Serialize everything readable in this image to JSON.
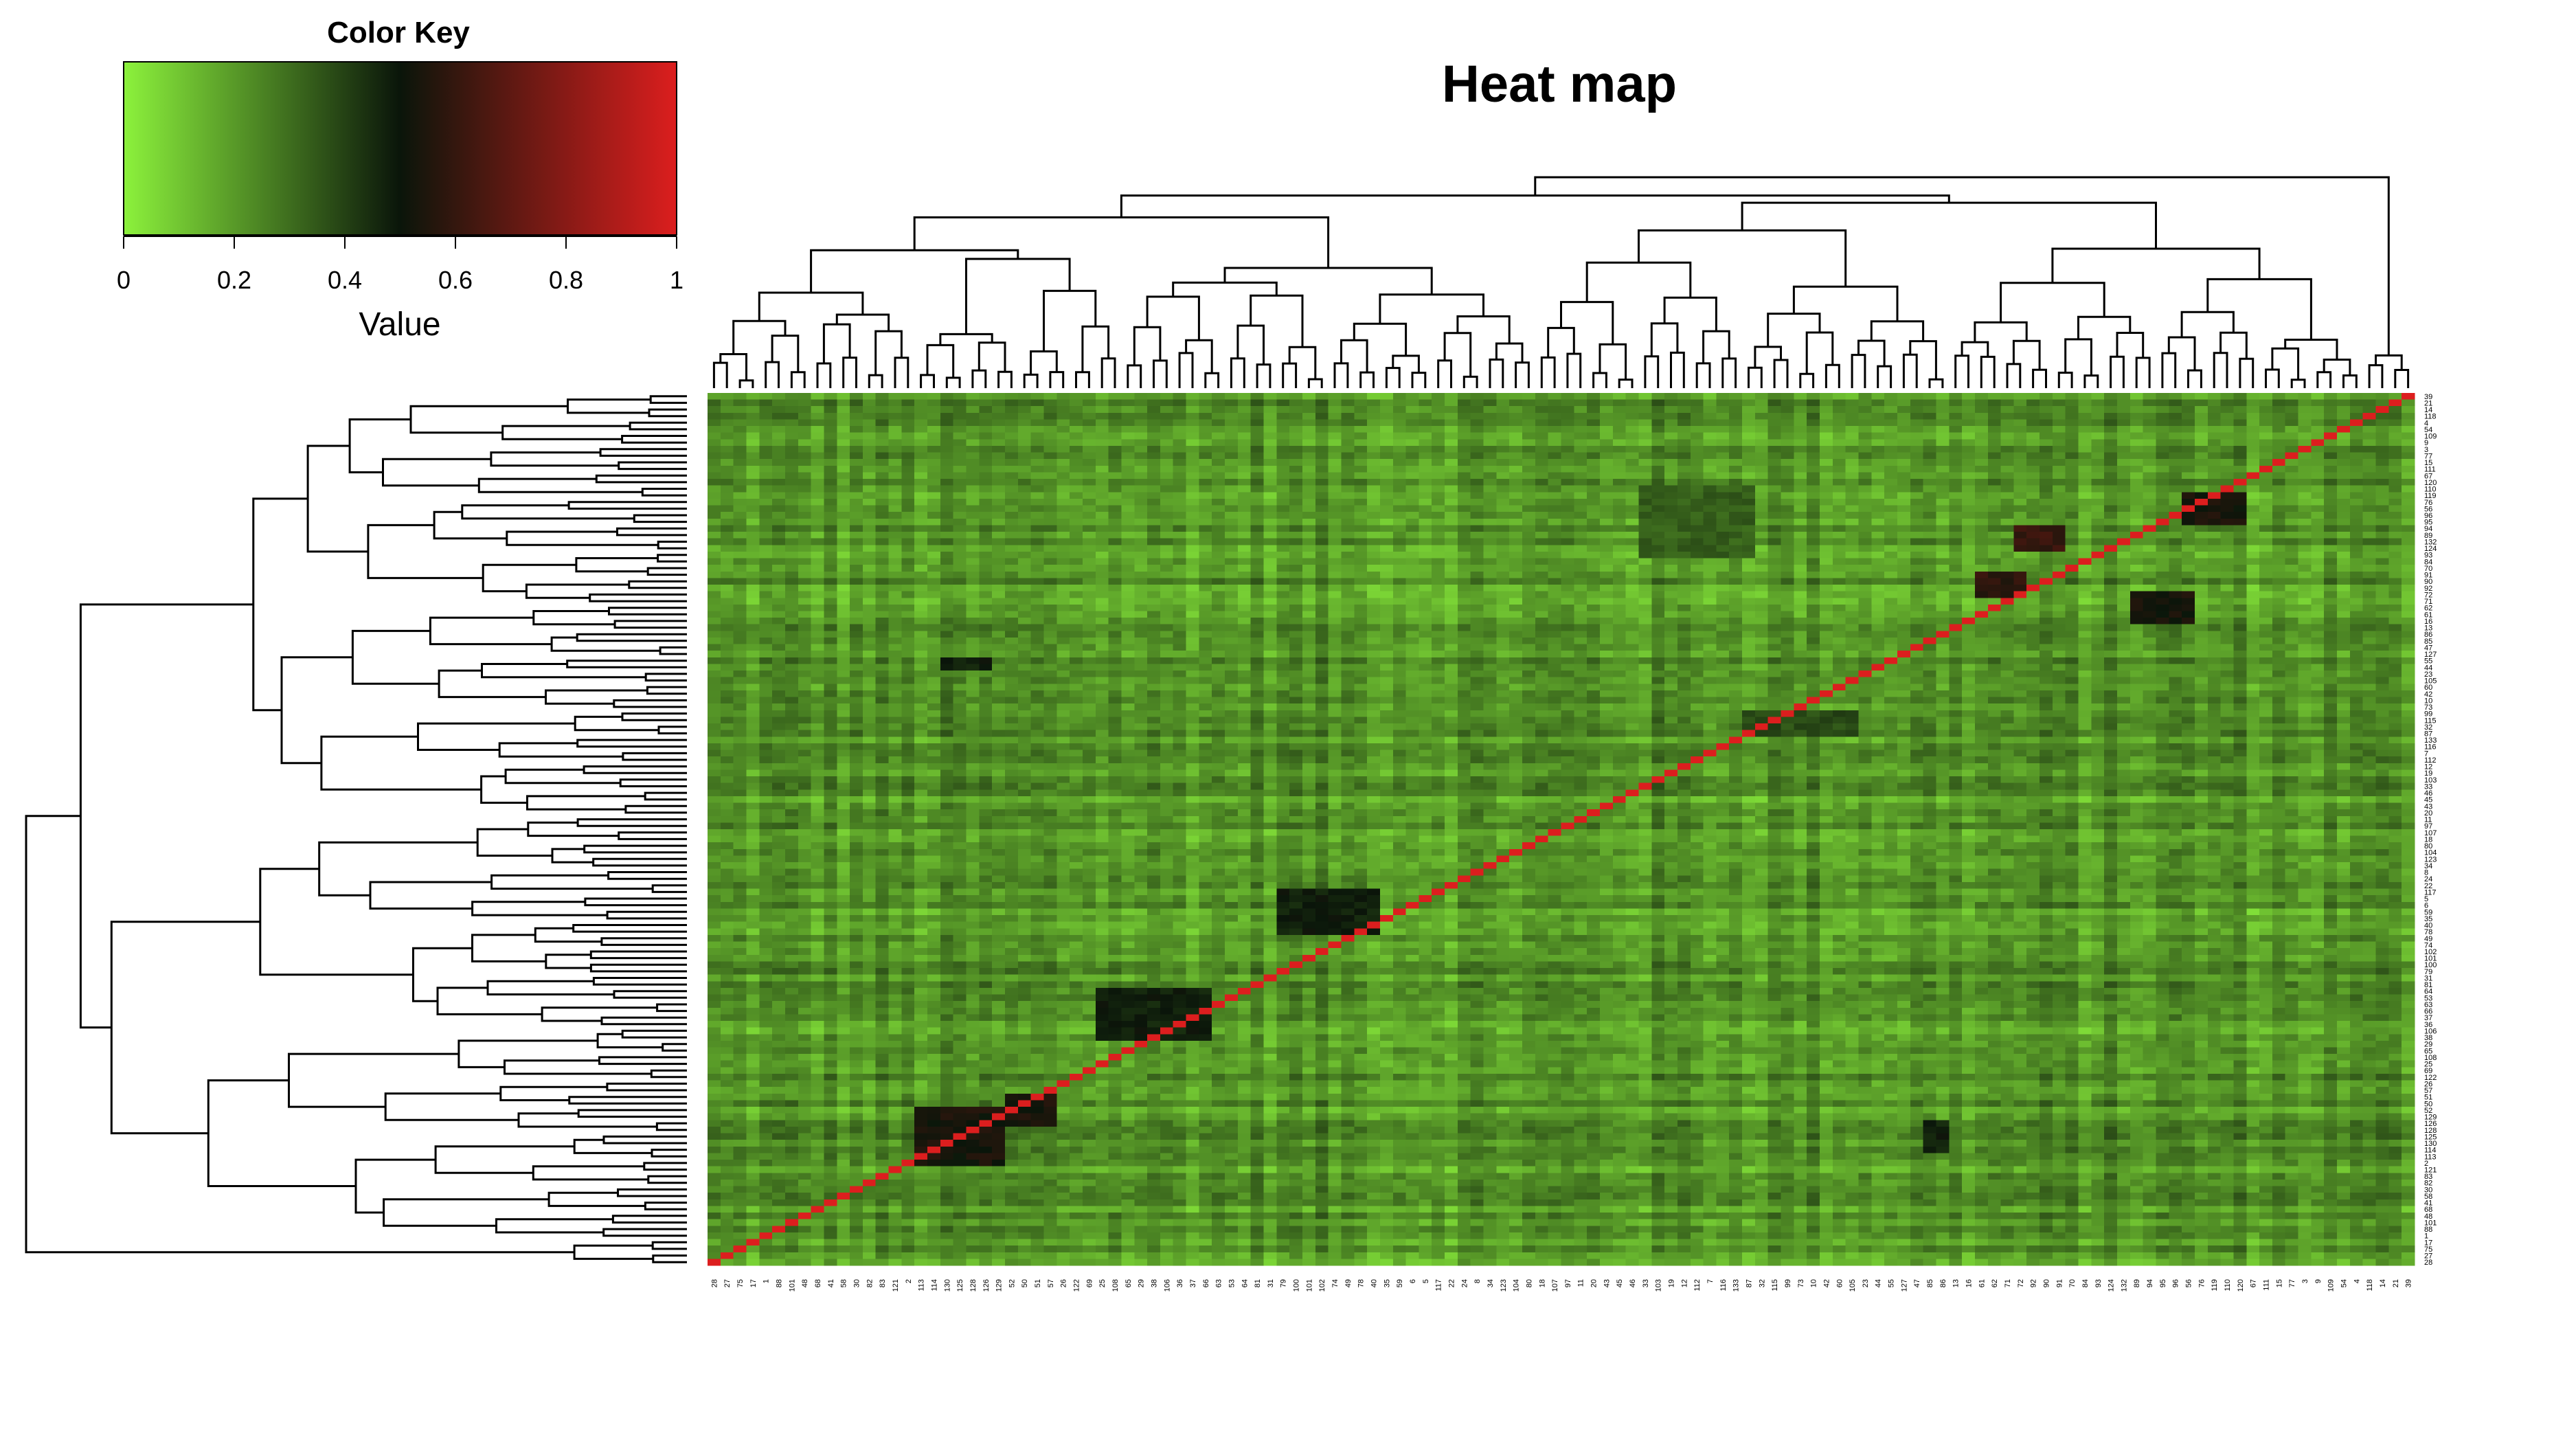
{
  "chart_data": {
    "type": "heatmap",
    "title": "Heat map",
    "color_key": {
      "title": "Color Key",
      "xlabel": "Value",
      "ticks": [
        "0",
        "0.2",
        "0.4",
        "0.6",
        "0.8",
        "1"
      ],
      "range": [
        0,
        1
      ],
      "colors": [
        "#8cf23c",
        "#0a150a",
        "#dc1e1e"
      ]
    },
    "column_labels": [
      "28",
      "27",
      "75",
      "17",
      "1",
      "88",
      "101",
      "48",
      "68",
      "41",
      "58",
      "30",
      "82",
      "83",
      "121",
      "2",
      "113",
      "114",
      "130",
      "125",
      "128",
      "126",
      "129",
      "52",
      "50",
      "51",
      "57",
      "26",
      "122",
      "69",
      "25",
      "108",
      "65",
      "29",
      "38",
      "106",
      "36",
      "37",
      "66",
      "63",
      "53",
      "64",
      "81",
      "31",
      "79",
      "100",
      "101",
      "102",
      "74",
      "49",
      "78",
      "40",
      "35",
      "59",
      "6",
      "5",
      "117",
      "22",
      "24",
      "8",
      "34",
      "123",
      "104",
      "80",
      "18",
      "107",
      "97",
      "11",
      "20",
      "43",
      "45",
      "46",
      "33",
      "103",
      "19",
      "12",
      "112",
      "7",
      "116",
      "133",
      "87",
      "32",
      "115",
      "99",
      "73",
      "10",
      "42",
      "60",
      "105",
      "23",
      "44",
      "55",
      "127",
      "47",
      "85",
      "86",
      "13",
      "16",
      "61",
      "62",
      "71",
      "72",
      "92",
      "90",
      "91",
      "70",
      "84",
      "93",
      "124",
      "132",
      "89",
      "94",
      "95",
      "96",
      "56",
      "76",
      "119",
      "110",
      "120",
      "67",
      "111",
      "15",
      "77",
      "3",
      "9",
      "109",
      "54",
      "4",
      "118",
      "14",
      "21",
      "39"
    ],
    "row_labels": [
      "39",
      "21",
      "14",
      "118",
      "4",
      "54",
      "109",
      "9",
      "3",
      "77",
      "15",
      "111",
      "67",
      "120",
      "110",
      "119",
      "76",
      "56",
      "96",
      "95",
      "94",
      "89",
      "132",
      "124",
      "93",
      "84",
      "70",
      "91",
      "90",
      "92",
      "72",
      "71",
      "62",
      "61",
      "16",
      "13",
      "86",
      "85",
      "47",
      "127",
      "55",
      "44",
      "23",
      "105",
      "60",
      "42",
      "10",
      "73",
      "99",
      "115",
      "32",
      "87",
      "133",
      "116",
      "7",
      "112",
      "12",
      "19",
      "103",
      "33",
      "46",
      "45",
      "43",
      "20",
      "11",
      "97",
      "107",
      "18",
      "80",
      "104",
      "123",
      "34",
      "8",
      "24",
      "22",
      "117",
      "5",
      "6",
      "59",
      "35",
      "40",
      "78",
      "49",
      "74",
      "102",
      "101",
      "100",
      "79",
      "31",
      "81",
      "64",
      "53",
      "63",
      "66",
      "37",
      "36",
      "106",
      "38",
      "29",
      "65",
      "108",
      "25",
      "69",
      "122",
      "26",
      "57",
      "51",
      "50",
      "52",
      "129",
      "126",
      "128",
      "125",
      "130",
      "114",
      "113",
      "2",
      "121",
      "83",
      "82",
      "30",
      "58",
      "41",
      "68",
      "48",
      "101",
      "88",
      "1",
      "17",
      "75",
      "27",
      "28"
    ],
    "blocks": [
      {
        "rows": [
          30,
          34
        ],
        "cols": [
          110,
          114
        ],
        "value": 0.55
      },
      {
        "rows": [
          15,
          19
        ],
        "cols": [
          114,
          118
        ],
        "value": 0.55
      },
      {
        "rows": [
          27,
          30
        ],
        "cols": [
          98,
          101
        ],
        "value": 0.6
      },
      {
        "rows": [
          20,
          23
        ],
        "cols": [
          101,
          104
        ],
        "value": 0.62
      },
      {
        "rows": [
          75,
          81
        ],
        "cols": [
          44,
          51
        ],
        "value": 0.5
      },
      {
        "rows": [
          90,
          97
        ],
        "cols": [
          30,
          38
        ],
        "value": 0.5
      },
      {
        "rows": [
          108,
          116
        ],
        "cols": [
          16,
          22
        ],
        "value": 0.55
      },
      {
        "rows": [
          106,
          110
        ],
        "cols": [
          23,
          26
        ],
        "value": 0.55
      },
      {
        "rows": [
          110,
          114
        ],
        "cols": [
          94,
          95
        ],
        "value": 0.5
      },
      {
        "rows": [
          40,
          41
        ],
        "cols": [
          18,
          21
        ],
        "value": 0.5
      },
      {
        "rows": [
          48,
          51
        ],
        "cols": [
          80,
          88
        ],
        "value": 0.4
      },
      {
        "rows": [
          14,
          24
        ],
        "cols": [
          72,
          80
        ],
        "value": 0.35
      }
    ]
  }
}
